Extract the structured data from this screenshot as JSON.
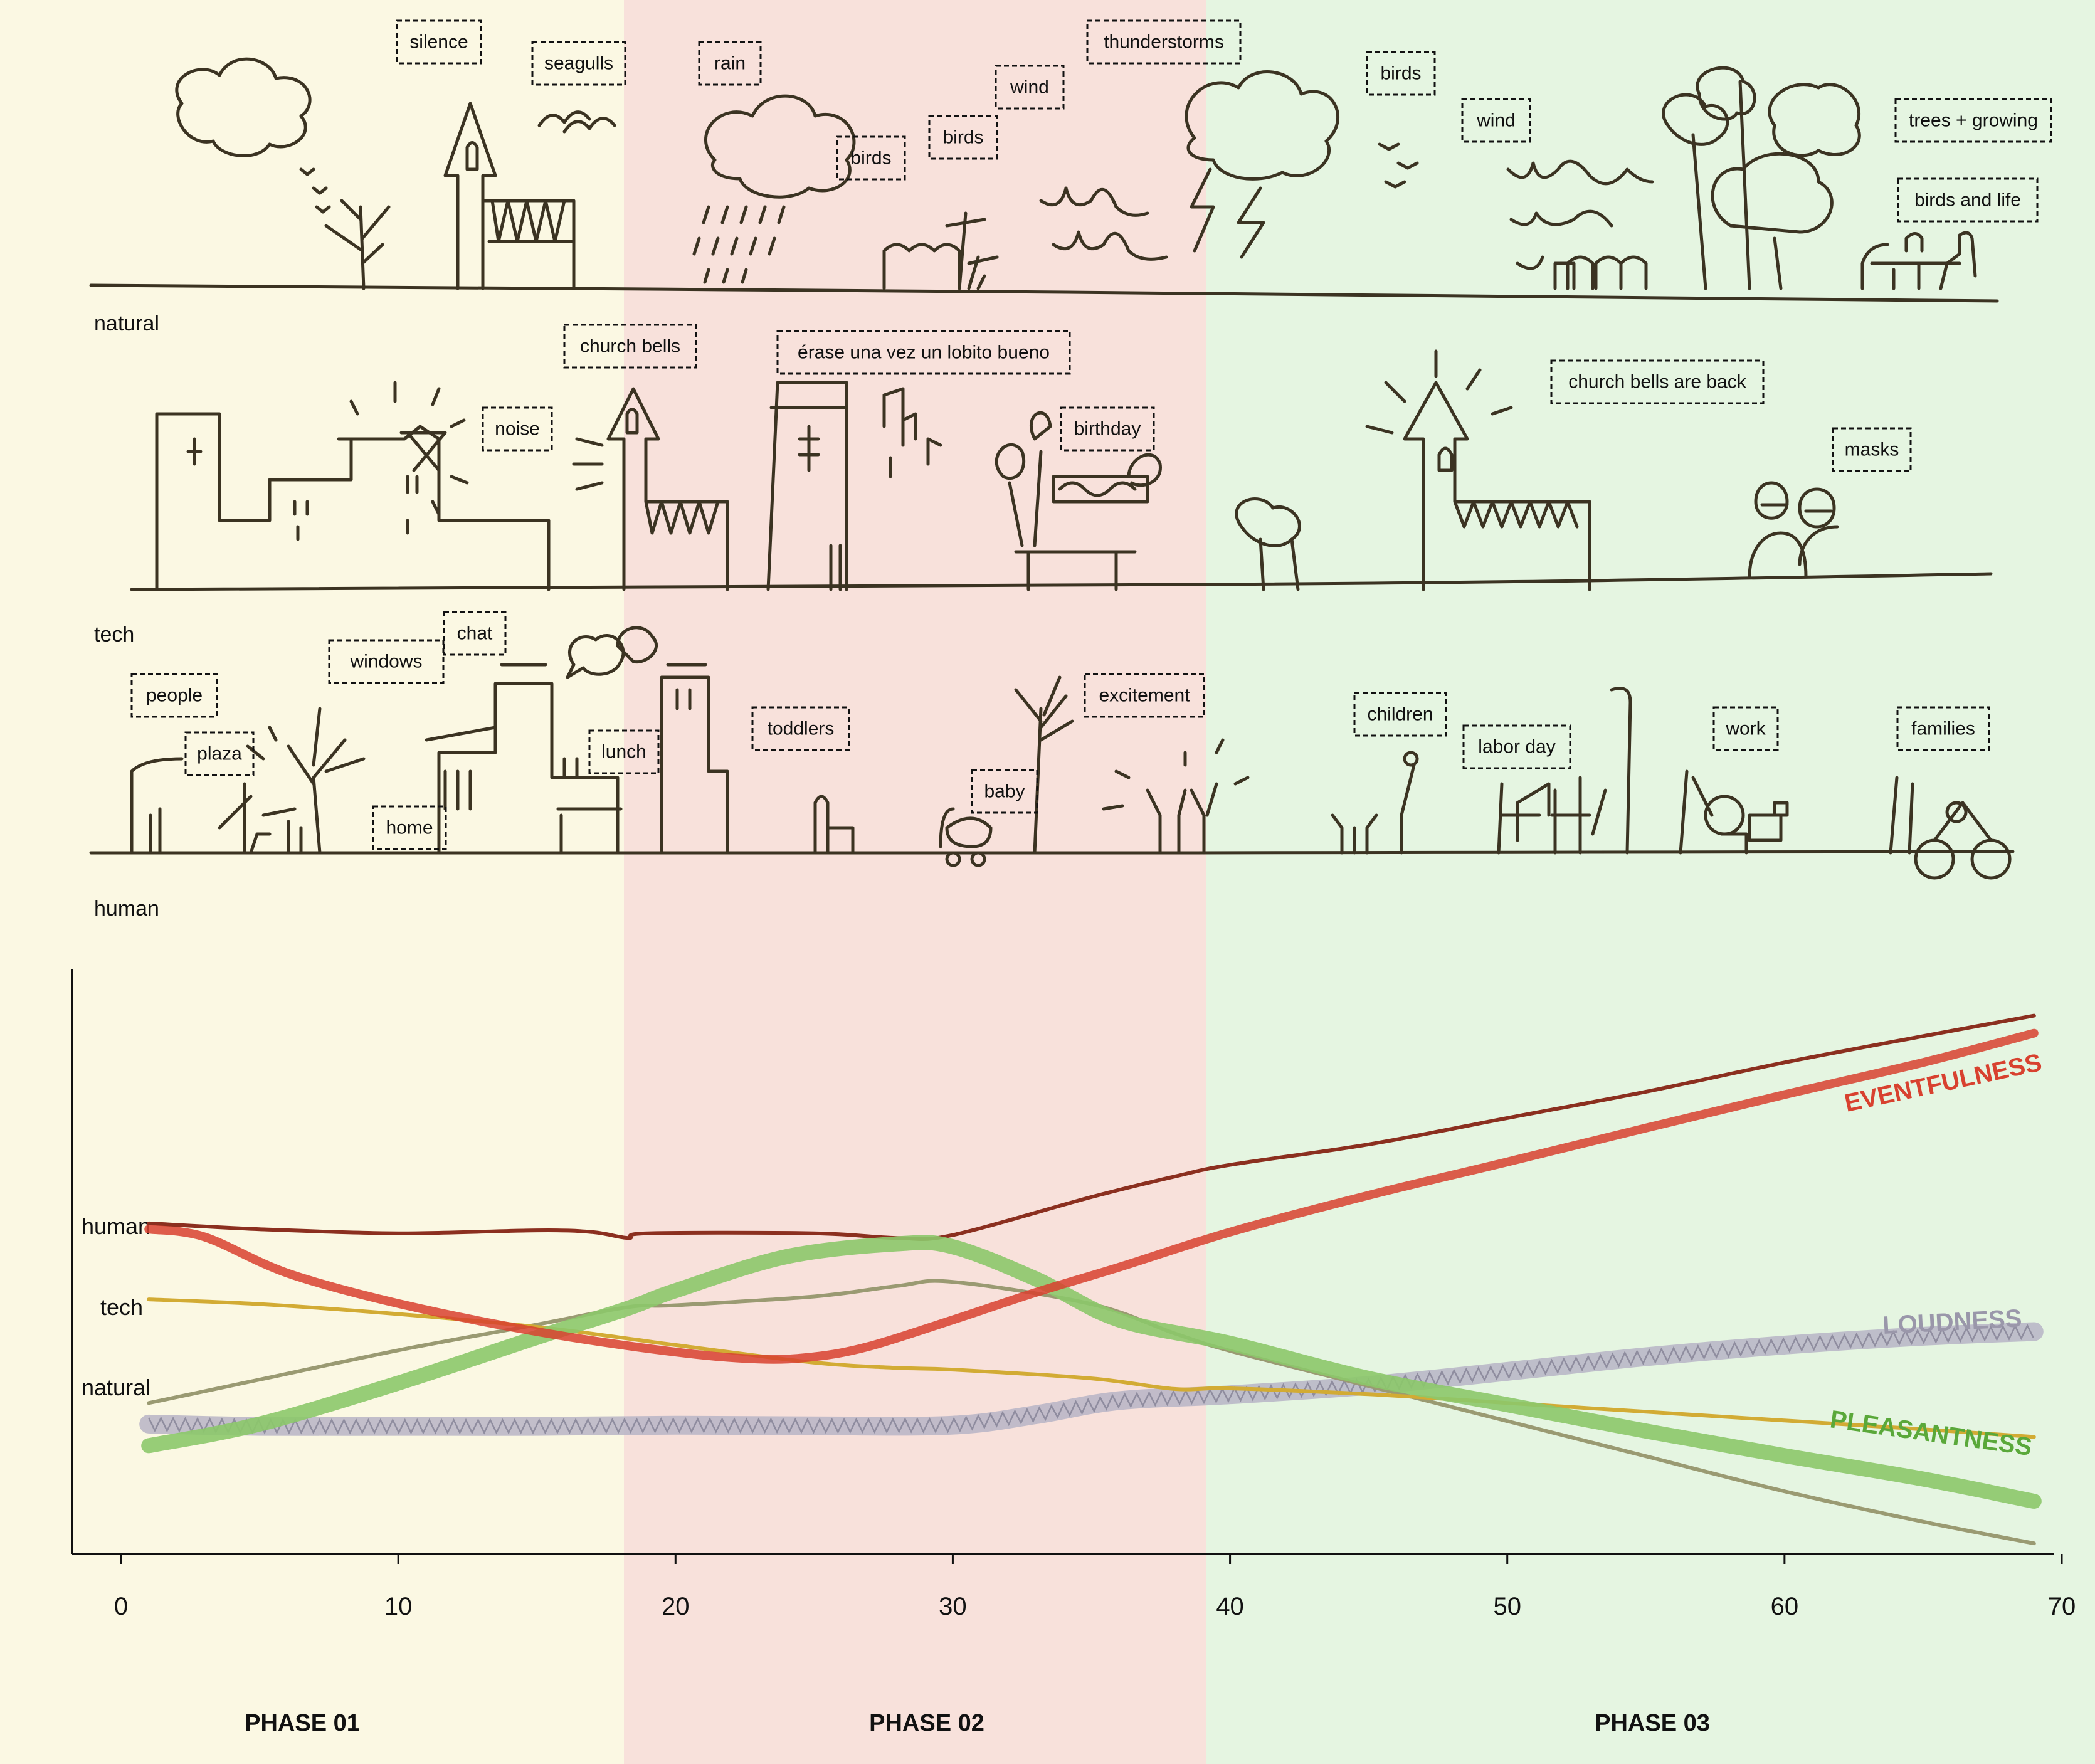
{
  "colors": {
    "phase1_bg": "#fbf8e3",
    "phase2_bg": "#f8e1db",
    "phase3_bg": "#e5f5e1",
    "sketch_ink": "#3b3322",
    "human": "#8b2f1f",
    "tech": "#d2ab34",
    "natural": "#9a9a72",
    "eventfulness": "#d8412f",
    "pleasantness": "#8cc86a",
    "loudness": "#b7b4c6"
  },
  "rows": {
    "natural": {
      "label": "natural",
      "tags": [
        "silence",
        "seagulls",
        "rain",
        "birds",
        "birds",
        "wind",
        "thunderstorms",
        "birds",
        "wind",
        "trees + growing",
        "birds and life"
      ]
    },
    "tech": {
      "label": "tech",
      "tags": [
        "church bells",
        "noise",
        "érase una vez un lobito bueno",
        "birthday",
        "church bells are back",
        "masks"
      ]
    },
    "human": {
      "label": "human",
      "tags": [
        "people",
        "plaza",
        "windows",
        "chat",
        "home",
        "lunch",
        "toddlers",
        "baby",
        "excitement",
        "children",
        "labor day",
        "work",
        "families"
      ]
    }
  },
  "phases": [
    "PHASE 01",
    "PHASE 02",
    "PHASE 03"
  ],
  "chart_data": {
    "type": "line",
    "xlim": [
      0,
      70
    ],
    "ylim": [
      0,
      1
    ],
    "xticks": [
      0,
      10,
      20,
      30,
      40,
      50,
      60,
      70
    ],
    "phase_bounds": [
      18.3,
      39.3
    ],
    "row_labels": [
      "human",
      "tech",
      "natural"
    ],
    "series": [
      {
        "key": "human",
        "x": [
          1,
          5,
          10,
          15,
          17,
          18.3,
          19,
          25,
          28,
          30,
          35,
          38,
          40,
          45,
          50,
          55,
          60,
          65,
          69
        ],
        "values": [
          0.565,
          0.555,
          0.548,
          0.553,
          0.55,
          0.54,
          0.548,
          0.548,
          0.54,
          0.545,
          0.61,
          0.645,
          0.665,
          0.7,
          0.745,
          0.79,
          0.84,
          0.885,
          0.92
        ]
      },
      {
        "key": "tech",
        "x": [
          1,
          5,
          10,
          15,
          18.3,
          20,
          25,
          28,
          30,
          35,
          38,
          40,
          45,
          50,
          55,
          60,
          65,
          69
        ],
        "values": [
          0.435,
          0.427,
          0.41,
          0.388,
          0.368,
          0.357,
          0.327,
          0.318,
          0.315,
          0.3,
          0.282,
          0.283,
          0.273,
          0.258,
          0.243,
          0.228,
          0.213,
          0.2
        ]
      },
      {
        "key": "natural",
        "x": [
          1,
          5,
          10,
          15,
          18.3,
          20,
          25,
          28,
          30,
          35,
          38,
          40,
          45,
          50,
          55,
          60,
          65,
          69
        ],
        "values": [
          0.258,
          0.298,
          0.348,
          0.392,
          0.422,
          0.425,
          0.44,
          0.458,
          0.465,
          0.427,
          0.377,
          0.347,
          0.287,
          0.227,
          0.167,
          0.107,
          0.055,
          0.018
        ]
      },
      {
        "name": "EVENTFULNESS",
        "x": [
          1,
          3,
          6,
          10,
          15,
          20,
          23,
          25,
          27,
          30,
          33,
          36,
          40,
          45,
          50,
          55,
          60,
          65,
          69
        ],
        "values": [
          0.555,
          0.542,
          0.48,
          0.428,
          0.38,
          0.345,
          0.333,
          0.337,
          0.355,
          0.4,
          0.447,
          0.49,
          0.55,
          0.613,
          0.67,
          0.728,
          0.785,
          0.84,
          0.89
        ]
      },
      {
        "name": "PLEASANTNESS",
        "x": [
          1,
          5,
          10,
          15,
          18.3,
          20,
          24,
          28,
          30,
          33,
          36,
          40,
          45,
          50,
          55,
          60,
          65,
          69
        ],
        "values": [
          0.185,
          0.222,
          0.292,
          0.37,
          0.42,
          0.45,
          0.508,
          0.53,
          0.525,
          0.47,
          0.4,
          0.36,
          0.3,
          0.255,
          0.21,
          0.168,
          0.128,
          0.09
        ]
      },
      {
        "name": "LOUDNESS",
        "x": [
          1,
          5,
          10,
          15,
          20,
          25,
          30,
          33,
          36,
          40,
          45,
          50,
          55,
          60,
          65,
          69
        ],
        "values": [
          0.222,
          0.218,
          0.218,
          0.218,
          0.22,
          0.219,
          0.22,
          0.238,
          0.262,
          0.272,
          0.288,
          0.312,
          0.337,
          0.357,
          0.372,
          0.38
        ]
      }
    ]
  }
}
